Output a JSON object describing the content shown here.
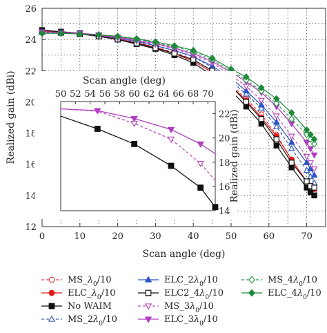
{
  "chart_data": [
    {
      "id": "main",
      "type": "line",
      "xlabel": "Scan angle (deg)",
      "ylabel": "Realized gain (dBi)",
      "xlim": [
        0,
        75
      ],
      "ylim": [
        12,
        26
      ],
      "xticks": [
        0,
        10,
        20,
        30,
        40,
        50,
        60,
        70
      ],
      "yticks": [
        12,
        14,
        16,
        18,
        20,
        22,
        24,
        26
      ],
      "grid": true,
      "legend_position": "below",
      "series": [
        {
          "name": "MS_λ0/10",
          "legend": [
            "MS_",
            "λ",
            "0",
            "/10"
          ],
          "color": "#e04040",
          "marker": "circle",
          "filled": false,
          "dash": "4 3",
          "x": [
            0,
            5,
            10,
            15,
            20,
            25,
            30,
            35,
            40,
            45,
            50,
            54,
            58,
            62,
            66,
            70,
            71,
            72
          ],
          "y": [
            24.5,
            24.4,
            24.35,
            24.2,
            24.0,
            23.8,
            23.5,
            23.2,
            22.7,
            22.0,
            21.1,
            20.2,
            19.2,
            17.9,
            16.3,
            14.8,
            14.5,
            14.2
          ]
        },
        {
          "name": "ELC_λ0/10",
          "legend": [
            "ELC_",
            "λ",
            "0",
            "/10"
          ],
          "color": "#e21b1b",
          "marker": "circle",
          "filled": true,
          "dash": "",
          "x": [
            0,
            5,
            10,
            15,
            20,
            25,
            30,
            35,
            40,
            45,
            50,
            54,
            58,
            62,
            66,
            70,
            71,
            72
          ],
          "y": [
            24.55,
            24.5,
            24.4,
            24.25,
            24.05,
            23.8,
            23.5,
            23.1,
            22.6,
            21.9,
            21.0,
            20.1,
            19.0,
            17.8,
            16.3,
            14.9,
            14.6,
            14.4
          ]
        },
        {
          "name": "No WAIM",
          "legend": [
            "No WAIM"
          ],
          "color": "#111111",
          "marker": "square",
          "filled": true,
          "dash": "",
          "x": [
            0,
            5,
            10,
            15,
            20,
            25,
            30,
            35,
            40,
            45,
            50,
            54,
            58,
            62,
            66,
            70,
            71,
            72
          ],
          "y": [
            24.6,
            24.5,
            24.4,
            24.2,
            24.0,
            23.7,
            23.4,
            23.0,
            22.5,
            21.7,
            20.7,
            19.7,
            18.6,
            17.2,
            15.8,
            14.5,
            14.2,
            14.0
          ]
        },
        {
          "name": "MS_2λ0/10",
          "legend": [
            "MS_2",
            "λ",
            "0",
            "/10"
          ],
          "color": "#3a5fb8",
          "marker": "triangle",
          "filled": false,
          "dash": "4 3",
          "x": [
            0,
            5,
            10,
            15,
            20,
            25,
            30,
            35,
            40,
            45,
            50,
            54,
            58,
            62,
            66,
            70,
            71,
            72
          ],
          "y": [
            24.45,
            24.4,
            24.35,
            24.25,
            24.05,
            23.85,
            23.6,
            23.3,
            22.9,
            22.2,
            21.3,
            20.5,
            19.6,
            18.4,
            17.0,
            15.6,
            15.2,
            14.8
          ]
        },
        {
          "name": "ELC_2λ0/10",
          "legend": [
            "ELC_2",
            "λ",
            "0",
            "/10"
          ],
          "color": "#2b55c7",
          "marker": "triangle",
          "filled": true,
          "dash": "",
          "x": [
            0,
            5,
            10,
            15,
            20,
            25,
            30,
            35,
            40,
            45,
            50,
            54,
            58,
            62,
            66,
            70,
            71,
            72
          ],
          "y": [
            24.5,
            24.45,
            24.4,
            24.3,
            24.1,
            23.9,
            23.6,
            23.3,
            22.9,
            22.3,
            21.5,
            20.7,
            19.8,
            18.7,
            17.4,
            16.1,
            15.7,
            15.3
          ]
        },
        {
          "name": "ELC2_4λ0/10",
          "legend": [
            "ELC2_4",
            "λ",
            "0",
            "/10"
          ],
          "color": "#111111",
          "marker": "square",
          "filled": false,
          "dash": "",
          "x": [
            0,
            5,
            10,
            15,
            20,
            25,
            30,
            35,
            40,
            45,
            50,
            54,
            58,
            62,
            66,
            70,
            71,
            72
          ],
          "y": [
            24.5,
            24.45,
            24.35,
            24.2,
            24.0,
            23.75,
            23.45,
            23.1,
            22.7,
            22.0,
            21.0,
            20.0,
            18.9,
            17.6,
            16.1,
            14.9,
            14.6,
            14.5
          ]
        },
        {
          "name": "MS_3λ0/10",
          "legend": [
            "MS_3",
            "λ",
            "0",
            "/10"
          ],
          "color": "#b84fc1",
          "marker": "triangle-down",
          "filled": false,
          "dash": "4 3",
          "x": [
            0,
            5,
            10,
            15,
            20,
            25,
            30,
            35,
            40,
            45,
            50,
            54,
            58,
            62,
            66,
            70,
            71,
            72
          ],
          "y": [
            24.45,
            24.4,
            24.35,
            24.25,
            24.1,
            23.9,
            23.7,
            23.4,
            23.0,
            22.5,
            21.7,
            21.0,
            20.1,
            19.1,
            17.8,
            16.5,
            16.1,
            15.7
          ]
        },
        {
          "name": "ELC_3λ0/10",
          "legend": [
            "ELC_3",
            "λ",
            "0",
            "/10"
          ],
          "color": "#b03cbf",
          "marker": "triangle-down",
          "filled": true,
          "dash": "",
          "x": [
            0,
            5,
            10,
            15,
            20,
            25,
            30,
            35,
            40,
            45,
            50,
            54,
            58,
            62,
            66,
            70,
            71,
            72
          ],
          "y": [
            24.5,
            24.45,
            24.4,
            24.3,
            24.15,
            23.95,
            23.75,
            23.45,
            23.1,
            22.6,
            21.9,
            21.3,
            20.6,
            19.7,
            18.6,
            17.4,
            17.0,
            16.6
          ]
        },
        {
          "name": "MS_4λ0/10",
          "legend": [
            "MS_4",
            "λ",
            "0",
            "/10"
          ],
          "color": "#2e9e4d",
          "marker": "diamond",
          "filled": false,
          "dash": "4 3",
          "x": [
            0,
            5,
            10,
            15,
            20,
            25,
            30,
            35,
            40,
            45,
            50,
            54,
            58,
            62,
            66,
            70,
            71,
            72
          ],
          "y": [
            24.4,
            24.4,
            24.35,
            24.3,
            24.2,
            24.0,
            23.8,
            23.55,
            23.2,
            22.7,
            22.0,
            21.4,
            20.7,
            19.9,
            18.9,
            17.9,
            17.6,
            17.3
          ]
        },
        {
          "name": "ELC_4λ0/10",
          "legend": [
            "ELC_4",
            "λ",
            "0",
            "/10"
          ],
          "color": "#1f8a3a",
          "marker": "diamond",
          "filled": true,
          "dash": "",
          "x": [
            0,
            5,
            10,
            15,
            20,
            25,
            30,
            35,
            40,
            45,
            50,
            54,
            58,
            62,
            66,
            70,
            71,
            72
          ],
          "y": [
            24.4,
            24.4,
            24.35,
            24.3,
            24.2,
            24.05,
            23.85,
            23.6,
            23.3,
            22.8,
            22.1,
            21.6,
            20.9,
            20.2,
            19.3,
            18.2,
            17.9,
            17.6
          ]
        }
      ]
    },
    {
      "id": "inset",
      "type": "line",
      "xlabel": "Scan angle (deg)",
      "ylabel": "Realized gain (dBi)",
      "xlim": [
        50,
        71
      ],
      "ylim": [
        14,
        23
      ],
      "xticks": [
        50,
        52,
        54,
        56,
        58,
        60,
        62,
        64,
        66,
        68,
        70
      ],
      "yticks": [
        14,
        16,
        18,
        20,
        22
      ],
      "x_axis_position": "top",
      "y_axis_position": "right",
      "series": [
        {
          "name": "No WAIM",
          "color": "#111111",
          "marker": "square",
          "filled": true,
          "x": [
            50,
            55,
            60,
            65,
            69,
            71
          ],
          "y": [
            21.8,
            20.75,
            19.5,
            17.7,
            15.9,
            14.3
          ],
          "marker_x": [
            55,
            60,
            65,
            69,
            71
          ]
        },
        {
          "name": "ELC_3λ0/10",
          "color": "#b03cbf",
          "marker": "triangle-down",
          "filled": true,
          "dash": "",
          "x": [
            50,
            55,
            60,
            65,
            69,
            71
          ],
          "y": [
            22.4,
            22.25,
            21.6,
            20.7,
            19.5,
            18.7
          ],
          "marker_x": [
            55,
            60,
            65,
            69
          ]
        },
        {
          "name": "MS_3λ0/10",
          "color": "#b84fc1",
          "marker": "triangle-down",
          "filled": false,
          "dash": "4 3",
          "x": [
            50,
            55,
            60,
            65,
            69,
            71
          ],
          "y": [
            22.4,
            22.2,
            21.2,
            19.9,
            17.9,
            16.5
          ],
          "marker_x": [
            60,
            65,
            69
          ]
        }
      ]
    }
  ]
}
